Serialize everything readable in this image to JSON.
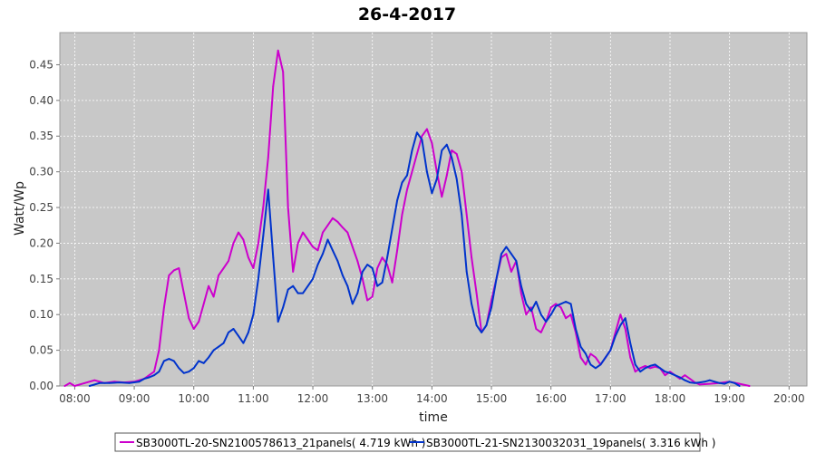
{
  "chart_data": {
    "type": "line",
    "title": "26-4-2017",
    "xlabel": "time",
    "ylabel": "Watt/Wp",
    "x_ticks": [
      "08:00",
      "09:00",
      "10:00",
      "11:00",
      "12:00",
      "13:00",
      "14:00",
      "15:00",
      "16:00",
      "17:00",
      "18:00",
      "19:00",
      "20:00"
    ],
    "y_ticks": [
      "0.00",
      "0.05",
      "0.10",
      "0.15",
      "0.20",
      "0.25",
      "0.30",
      "0.35",
      "0.40",
      "0.45"
    ],
    "xlim": [
      "07:45",
      "20:18"
    ],
    "ylim": [
      0,
      0.495
    ],
    "grid": true,
    "legend_position": "bottom",
    "series": [
      {
        "name": "SB3000TL-20-SN2100578613_21panels( 4.719 kWh )",
        "color": "#cc00cc",
        "points": [
          [
            "07:50",
            0.0
          ],
          [
            "07:55",
            0.004
          ],
          [
            "08:00",
            0.0
          ],
          [
            "08:10",
            0.004
          ],
          [
            "08:20",
            0.008
          ],
          [
            "08:30",
            0.004
          ],
          [
            "08:40",
            0.006
          ],
          [
            "08:50",
            0.005
          ],
          [
            "09:00",
            0.006
          ],
          [
            "09:10",
            0.01
          ],
          [
            "09:20",
            0.02
          ],
          [
            "09:25",
            0.05
          ],
          [
            "09:30",
            0.11
          ],
          [
            "09:35",
            0.155
          ],
          [
            "09:40",
            0.162
          ],
          [
            "09:45",
            0.165
          ],
          [
            "09:50",
            0.13
          ],
          [
            "09:55",
            0.095
          ],
          [
            "10:00",
            0.08
          ],
          [
            "10:05",
            0.09
          ],
          [
            "10:10",
            0.115
          ],
          [
            "10:15",
            0.14
          ],
          [
            "10:20",
            0.125
          ],
          [
            "10:25",
            0.155
          ],
          [
            "10:30",
            0.165
          ],
          [
            "10:35",
            0.175
          ],
          [
            "10:40",
            0.2
          ],
          [
            "10:45",
            0.215
          ],
          [
            "10:50",
            0.205
          ],
          [
            "10:55",
            0.18
          ],
          [
            "11:00",
            0.165
          ],
          [
            "11:05",
            0.2
          ],
          [
            "11:10",
            0.25
          ],
          [
            "11:15",
            0.32
          ],
          [
            "11:20",
            0.42
          ],
          [
            "11:25",
            0.47
          ],
          [
            "11:30",
            0.44
          ],
          [
            "11:35",
            0.25
          ],
          [
            "11:40",
            0.16
          ],
          [
            "11:45",
            0.2
          ],
          [
            "11:50",
            0.215
          ],
          [
            "11:55",
            0.205
          ],
          [
            "12:00",
            0.195
          ],
          [
            "12:05",
            0.19
          ],
          [
            "12:10",
            0.215
          ],
          [
            "12:15",
            0.225
          ],
          [
            "12:20",
            0.235
          ],
          [
            "12:25",
            0.23
          ],
          [
            "12:30",
            0.222
          ],
          [
            "12:35",
            0.215
          ],
          [
            "12:40",
            0.195
          ],
          [
            "12:45",
            0.175
          ],
          [
            "12:50",
            0.15
          ],
          [
            "12:55",
            0.12
          ],
          [
            "13:00",
            0.125
          ],
          [
            "13:05",
            0.165
          ],
          [
            "13:10",
            0.18
          ],
          [
            "13:15",
            0.17
          ],
          [
            "13:20",
            0.145
          ],
          [
            "13:25",
            0.19
          ],
          [
            "13:30",
            0.24
          ],
          [
            "13:35",
            0.275
          ],
          [
            "13:40",
            0.3
          ],
          [
            "13:45",
            0.325
          ],
          [
            "13:50",
            0.35
          ],
          [
            "13:55",
            0.36
          ],
          [
            "14:00",
            0.34
          ],
          [
            "14:05",
            0.3
          ],
          [
            "14:10",
            0.265
          ],
          [
            "14:15",
            0.295
          ],
          [
            "14:20",
            0.33
          ],
          [
            "14:25",
            0.325
          ],
          [
            "14:30",
            0.3
          ],
          [
            "14:35",
            0.24
          ],
          [
            "14:40",
            0.18
          ],
          [
            "14:45",
            0.13
          ],
          [
            "14:50",
            0.075
          ],
          [
            "14:55",
            0.085
          ],
          [
            "15:00",
            0.12
          ],
          [
            "15:05",
            0.15
          ],
          [
            "15:10",
            0.18
          ],
          [
            "15:15",
            0.185
          ],
          [
            "15:20",
            0.16
          ],
          [
            "15:25",
            0.175
          ],
          [
            "15:30",
            0.13
          ],
          [
            "15:35",
            0.1
          ],
          [
            "15:40",
            0.11
          ],
          [
            "15:45",
            0.08
          ],
          [
            "15:50",
            0.075
          ],
          [
            "15:55",
            0.09
          ],
          [
            "16:00",
            0.11
          ],
          [
            "16:05",
            0.115
          ],
          [
            "16:10",
            0.11
          ],
          [
            "16:15",
            0.095
          ],
          [
            "16:20",
            0.1
          ],
          [
            "16:25",
            0.075
          ],
          [
            "16:30",
            0.04
          ],
          [
            "16:35",
            0.03
          ],
          [
            "16:40",
            0.045
          ],
          [
            "16:45",
            0.04
          ],
          [
            "16:50",
            0.03
          ],
          [
            "16:55",
            0.04
          ],
          [
            "17:00",
            0.05
          ],
          [
            "17:05",
            0.075
          ],
          [
            "17:10",
            0.1
          ],
          [
            "17:15",
            0.08
          ],
          [
            "17:20",
            0.04
          ],
          [
            "17:25",
            0.02
          ],
          [
            "17:30",
            0.025
          ],
          [
            "17:35",
            0.028
          ],
          [
            "17:40",
            0.025
          ],
          [
            "17:45",
            0.027
          ],
          [
            "17:50",
            0.025
          ],
          [
            "17:55",
            0.015
          ],
          [
            "18:00",
            0.02
          ],
          [
            "18:05",
            0.015
          ],
          [
            "18:10",
            0.01
          ],
          [
            "18:15",
            0.015
          ],
          [
            "18:20",
            0.01
          ],
          [
            "18:25",
            0.005
          ],
          [
            "18:30",
            0.002
          ],
          [
            "18:40",
            0.003
          ],
          [
            "18:50",
            0.004
          ],
          [
            "19:00",
            0.006
          ],
          [
            "19:10",
            0.003
          ],
          [
            "19:20",
            0.0
          ]
        ]
      },
      {
        "name": "SB3000TL-21-SN2130032031_19panels( 3.316 kWh )",
        "color": "#0033cc",
        "points": [
          [
            "08:15",
            0.0
          ],
          [
            "08:25",
            0.004
          ],
          [
            "08:35",
            0.004
          ],
          [
            "08:45",
            0.005
          ],
          [
            "08:55",
            0.004
          ],
          [
            "09:05",
            0.006
          ],
          [
            "09:10",
            0.01
          ],
          [
            "09:15",
            0.012
          ],
          [
            "09:20",
            0.015
          ],
          [
            "09:25",
            0.02
          ],
          [
            "09:30",
            0.035
          ],
          [
            "09:35",
            0.038
          ],
          [
            "09:40",
            0.035
          ],
          [
            "09:45",
            0.025
          ],
          [
            "09:50",
            0.018
          ],
          [
            "09:55",
            0.02
          ],
          [
            "10:00",
            0.025
          ],
          [
            "10:05",
            0.035
          ],
          [
            "10:10",
            0.032
          ],
          [
            "10:15",
            0.04
          ],
          [
            "10:20",
            0.05
          ],
          [
            "10:25",
            0.055
          ],
          [
            "10:30",
            0.06
          ],
          [
            "10:35",
            0.075
          ],
          [
            "10:40",
            0.08
          ],
          [
            "10:45",
            0.07
          ],
          [
            "10:50",
            0.06
          ],
          [
            "10:55",
            0.075
          ],
          [
            "11:00",
            0.1
          ],
          [
            "11:05",
            0.15
          ],
          [
            "11:10",
            0.21
          ],
          [
            "11:15",
            0.275
          ],
          [
            "11:20",
            0.18
          ],
          [
            "11:25",
            0.09
          ],
          [
            "11:30",
            0.11
          ],
          [
            "11:35",
            0.135
          ],
          [
            "11:40",
            0.14
          ],
          [
            "11:45",
            0.13
          ],
          [
            "11:50",
            0.13
          ],
          [
            "11:55",
            0.14
          ],
          [
            "12:00",
            0.15
          ],
          [
            "12:05",
            0.17
          ],
          [
            "12:10",
            0.185
          ],
          [
            "12:15",
            0.205
          ],
          [
            "12:20",
            0.19
          ],
          [
            "12:25",
            0.175
          ],
          [
            "12:30",
            0.155
          ],
          [
            "12:35",
            0.14
          ],
          [
            "12:40",
            0.115
          ],
          [
            "12:45",
            0.13
          ],
          [
            "12:50",
            0.16
          ],
          [
            "12:55",
            0.17
          ],
          [
            "13:00",
            0.165
          ],
          [
            "13:05",
            0.14
          ],
          [
            "13:10",
            0.145
          ],
          [
            "13:15",
            0.18
          ],
          [
            "13:20",
            0.22
          ],
          [
            "13:25",
            0.26
          ],
          [
            "13:30",
            0.285
          ],
          [
            "13:35",
            0.295
          ],
          [
            "13:40",
            0.33
          ],
          [
            "13:45",
            0.355
          ],
          [
            "13:50",
            0.345
          ],
          [
            "13:55",
            0.3
          ],
          [
            "14:00",
            0.27
          ],
          [
            "14:05",
            0.29
          ],
          [
            "14:10",
            0.33
          ],
          [
            "14:15",
            0.338
          ],
          [
            "14:20",
            0.32
          ],
          [
            "14:25",
            0.29
          ],
          [
            "14:30",
            0.24
          ],
          [
            "14:35",
            0.16
          ],
          [
            "14:40",
            0.115
          ],
          [
            "14:45",
            0.085
          ],
          [
            "14:50",
            0.075
          ],
          [
            "14:55",
            0.085
          ],
          [
            "15:00",
            0.11
          ],
          [
            "15:05",
            0.15
          ],
          [
            "15:10",
            0.185
          ],
          [
            "15:15",
            0.195
          ],
          [
            "15:20",
            0.185
          ],
          [
            "15:25",
            0.175
          ],
          [
            "15:30",
            0.14
          ],
          [
            "15:35",
            0.115
          ],
          [
            "15:40",
            0.105
          ],
          [
            "15:45",
            0.118
          ],
          [
            "15:50",
            0.1
          ],
          [
            "15:55",
            0.09
          ],
          [
            "16:00",
            0.1
          ],
          [
            "16:05",
            0.112
          ],
          [
            "16:10",
            0.115
          ],
          [
            "16:15",
            0.118
          ],
          [
            "16:20",
            0.115
          ],
          [
            "16:25",
            0.08
          ],
          [
            "16:30",
            0.055
          ],
          [
            "16:35",
            0.045
          ],
          [
            "16:40",
            0.03
          ],
          [
            "16:45",
            0.025
          ],
          [
            "16:50",
            0.03
          ],
          [
            "16:55",
            0.04
          ],
          [
            "17:00",
            0.05
          ],
          [
            "17:05",
            0.07
          ],
          [
            "17:10",
            0.085
          ],
          [
            "17:15",
            0.095
          ],
          [
            "17:20",
            0.06
          ],
          [
            "17:25",
            0.03
          ],
          [
            "17:30",
            0.02
          ],
          [
            "17:35",
            0.025
          ],
          [
            "17:40",
            0.028
          ],
          [
            "17:45",
            0.03
          ],
          [
            "17:50",
            0.025
          ],
          [
            "17:55",
            0.02
          ],
          [
            "18:00",
            0.018
          ],
          [
            "18:05",
            0.015
          ],
          [
            "18:10",
            0.012
          ],
          [
            "18:15",
            0.008
          ],
          [
            "18:20",
            0.005
          ],
          [
            "18:25",
            0.004
          ],
          [
            "18:30",
            0.005
          ],
          [
            "18:35",
            0.006
          ],
          [
            "18:40",
            0.008
          ],
          [
            "18:45",
            0.006
          ],
          [
            "18:50",
            0.004
          ],
          [
            "18:55",
            0.003
          ],
          [
            "19:00",
            0.006
          ],
          [
            "19:05",
            0.004
          ],
          [
            "19:10",
            0.0
          ]
        ]
      }
    ]
  }
}
